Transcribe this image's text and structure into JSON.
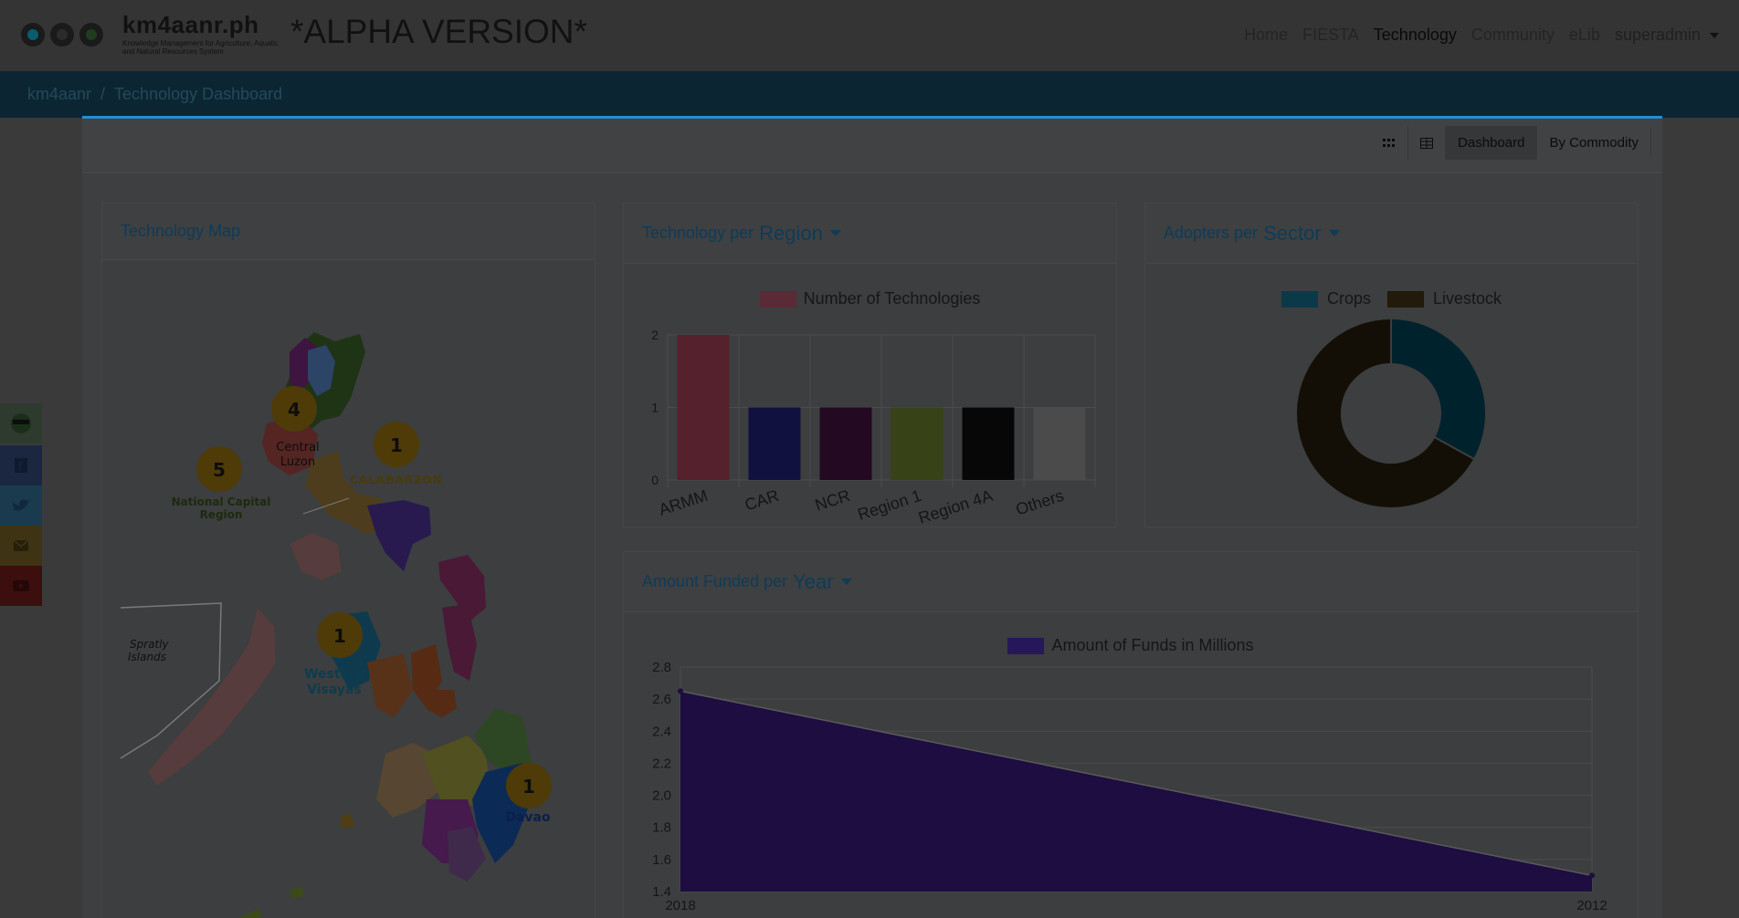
{
  "header": {
    "brand_title": "km4aanr.ph",
    "brand_subtitle": "Knowledge Management for Agriculture, Aquatic and Natural Resources System",
    "alpha_label": "*ALPHA VERSION*",
    "nav": [
      "Home",
      "FIESTA",
      "Technology",
      "Community",
      "eLib"
    ],
    "user": "superadmin"
  },
  "breadcrumb": [
    "km4aanr",
    "Technology Dashboard"
  ],
  "toolbar": {
    "dashboard_label": "Dashboard",
    "commodity_label": "By Commodity"
  },
  "map_card": {
    "title": "Technology Map",
    "labels": {
      "central_luzon": [
        "Central",
        "Luzon"
      ],
      "calabarzon": "CALABARZON",
      "ncr": [
        "National Capital",
        "Region"
      ],
      "spratly": [
        "Spratly",
        "Islands"
      ],
      "western_visayas": [
        "Western",
        "Visayas"
      ],
      "davao": "Davao"
    },
    "badges": {
      "central_luzon": "4",
      "calabarzon": "1",
      "ncr": "5",
      "western_visayas": "1",
      "davao": "1"
    }
  },
  "region_card": {
    "title_prefix": "Technology per",
    "title_select": "Region",
    "legend": "Number of Technologies"
  },
  "sector_card": {
    "title_prefix": "Adopters per",
    "title_select": "Sector",
    "legend": [
      "Crops",
      "Livestock"
    ]
  },
  "funds_card": {
    "title_prefix": "Amount Funded per",
    "title_select": "Year",
    "legend": "Amount of Funds in Millions"
  },
  "chart_data": [
    {
      "type": "bar",
      "categories": [
        "ARMM",
        "CAR",
        "NCR",
        "Region 1",
        "Region 4A",
        "Others"
      ],
      "series": [
        {
          "name": "Number of Technologies",
          "values": [
            2,
            1,
            1,
            1,
            1,
            1
          ]
        }
      ],
      "colors": [
        "#ff6384",
        "#3333c0",
        "#6b1a66",
        "#a8c846",
        "#151515",
        "#e4e4e4"
      ],
      "yticks": [
        "0",
        "1",
        "2"
      ],
      "ylim": [
        0,
        2
      ]
    },
    {
      "type": "pie",
      "labels": [
        "Crops",
        "Livestock"
      ],
      "values": [
        33,
        67
      ],
      "colors": [
        "#006080",
        "#3a2a10"
      ]
    },
    {
      "type": "area",
      "x": [
        "2018",
        "2012"
      ],
      "series": [
        {
          "name": "Amount of Funds in Millions",
          "values": [
            2.65,
            1.5
          ]
        }
      ],
      "yticks": [
        "1.4",
        "1.6",
        "1.8",
        "2.0",
        "2.2",
        "2.4",
        "2.6",
        "2.8"
      ],
      "ylim": [
        1.4,
        2.8
      ],
      "color": "#5a28c8"
    }
  ],
  "social_icons": [
    "logo-icon",
    "facebook-icon",
    "twitter-icon",
    "mail-icon",
    "youtube-icon"
  ]
}
